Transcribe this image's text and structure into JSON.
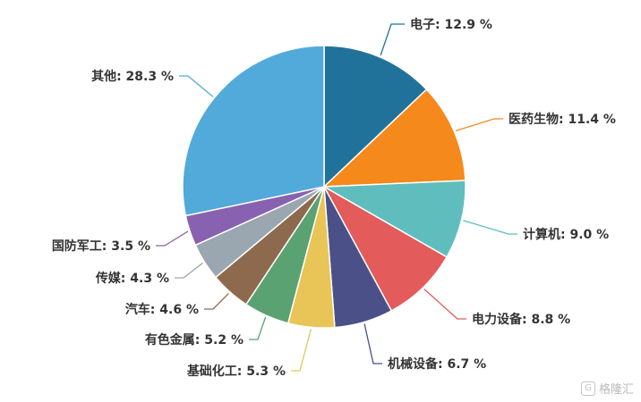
{
  "chart_data": {
    "type": "pie",
    "title": "",
    "slices": [
      {
        "label": "电子",
        "value": 12.9,
        "display": "12.9 %",
        "color": "#21729b"
      },
      {
        "label": "医药生物",
        "value": 11.4,
        "display": "11.4 %",
        "color": "#f5891b"
      },
      {
        "label": "计算机",
        "value": 9.0,
        "display": "9.0 %",
        "color": "#5fbebd"
      },
      {
        "label": "电力设备",
        "value": 8.8,
        "display": "8.8 %",
        "color": "#e35b5a"
      },
      {
        "label": "机械设备",
        "value": 6.7,
        "display": "6.7 %",
        "color": "#4b5088"
      },
      {
        "label": "基础化工",
        "value": 5.3,
        "display": "5.3 %",
        "color": "#e8c556"
      },
      {
        "label": "有色金属",
        "value": 5.2,
        "display": "5.2 %",
        "color": "#5ba272"
      },
      {
        "label": "汽车",
        "value": 4.6,
        "display": "4.6 %",
        "color": "#8d6a4e"
      },
      {
        "label": "传媒",
        "value": 4.3,
        "display": "4.3 %",
        "color": "#9aa6b0"
      },
      {
        "label": "国防军工",
        "value": 3.5,
        "display": "3.5 %",
        "color": "#8862b0"
      },
      {
        "label": "其他",
        "value": 28.3,
        "display": "28.3 %",
        "color": "#52aadb"
      }
    ]
  },
  "watermark": {
    "text": "格隆汇",
    "icon": "gelonghui-logo-icon"
  }
}
